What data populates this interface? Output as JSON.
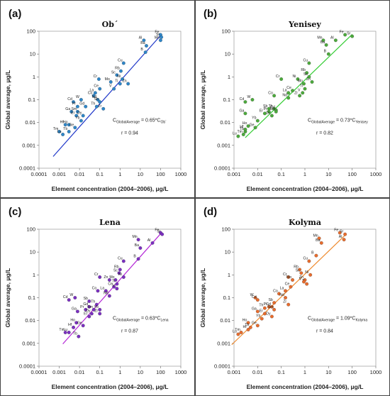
{
  "figure": {
    "x_axis_title": "Element concentration (2004–2006), μg/L",
    "y_axis_title": "Global average, μg/L",
    "x_ticks": [
      "0.0001",
      "0.001",
      "0.01",
      "0.1",
      "1",
      "10",
      "100",
      "1000"
    ],
    "y_ticks": [
      "0.0001",
      "0.001",
      "0.01",
      "0.1",
      "1",
      "10",
      "100"
    ]
  },
  "chart_data": [
    {
      "type": "scatter",
      "panel_letter": "(a)",
      "title": "Ob´",
      "xscale": "log",
      "yscale": "log",
      "xlim": [
        0.0001,
        1000
      ],
      "ylim": [
        0.0001,
        100
      ],
      "color": "#2e86c8",
      "line_color": "#1f37c9",
      "fit_coef": 0.65,
      "fit_x_range": [
        0.0005,
        100
      ],
      "equation": {
        "main": "C",
        "sub1": "GlobalAverage",
        "mid": " = 0.65*C",
        "sub2": "Ob´"
      },
      "r_label": "r = 0.94",
      "points": [
        {
          "label": "Fe",
          "x": 100,
          "y": 70
        },
        {
          "label": "Sr",
          "x": 110,
          "y": 55
        },
        {
          "label": "Mn",
          "x": 100,
          "y": 40
        },
        {
          "label": "Al",
          "x": 15,
          "y": 40
        },
        {
          "label": "Ba",
          "x": 20,
          "y": 23
        },
        {
          "label": "B",
          "x": 18,
          "y": 12
        },
        {
          "label": "Cu",
          "x": 1.5,
          "y": 4
        },
        {
          "label": "Rb",
          "x": 1.1,
          "y": 1.8
        },
        {
          "label": "Sc",
          "x": 0.7,
          "y": 1.2
        },
        {
          "label": "Ni",
          "x": 1.3,
          "y": 0.8
        },
        {
          "label": "Mo",
          "x": 0.35,
          "y": 0.6
        },
        {
          "label": "Zn",
          "x": 2.5,
          "y": 0.5
        },
        {
          "label": "Ti",
          "x": 1.0,
          "y": 0.5
        },
        {
          "label": "Cr",
          "x": 0.09,
          "y": 0.8
        },
        {
          "label": "Ce",
          "x": 0.1,
          "y": 0.3
        },
        {
          "label": "La",
          "x": 0.06,
          "y": 0.2
        },
        {
          "label": "Co",
          "x": 0.05,
          "y": 0.15
        },
        {
          "label": "Nd",
          "x": 0.08,
          "y": 0.1
        },
        {
          "label": "V",
          "x": 0.5,
          "y": 0.3
        },
        {
          "label": "Sb",
          "x": 0.1,
          "y": 0.08
        },
        {
          "label": "Zr",
          "x": 0.15,
          "y": 0.04
        },
        {
          "label": "Th",
          "x": 0.07,
          "y": 0.05
        },
        {
          "label": "Cd",
          "x": 0.005,
          "y": 0.08
        },
        {
          "label": "W",
          "x": 0.012,
          "y": 0.1
        },
        {
          "label": "Pr",
          "x": 0.008,
          "y": 0.05
        },
        {
          "label": "Gd",
          "x": 0.02,
          "y": 0.05
        },
        {
          "label": "Ga",
          "x": 0.004,
          "y": 0.03
        },
        {
          "label": "Sm",
          "x": 0.008,
          "y": 0.03
        },
        {
          "label": "Er",
          "x": 0.007,
          "y": 0.02
        },
        {
          "label": "Dy",
          "x": 0.015,
          "y": 0.02
        },
        {
          "label": "Hf",
          "x": 0.002,
          "y": 0.008
        },
        {
          "label": "Ho",
          "x": 0.003,
          "y": 0.008
        },
        {
          "label": "Ge",
          "x": 0.006,
          "y": 0.006
        },
        {
          "label": "Tm",
          "x": 0.001,
          "y": 0.004
        },
        {
          "label": "Lu",
          "x": 0.0015,
          "y": 0.003
        },
        {
          "label": "Tb",
          "x": 0.003,
          "y": 0.004
        },
        {
          "label": "Yb",
          "x": 0.012,
          "y": 0.012
        }
      ]
    },
    {
      "type": "scatter",
      "panel_letter": "(b)",
      "title": "Yenisey",
      "xscale": "log",
      "yscale": "log",
      "xlim": [
        0.001,
        1000
      ],
      "ylim": [
        0.0001,
        100
      ],
      "color": "#4caa3c",
      "line_color": "#33cc33",
      "fit_coef": 0.73,
      "fit_x_range": [
        0.003,
        100
      ],
      "equation": {
        "main": "C",
        "sub1": "GlobalAverage",
        "mid": " = 0.73*C",
        "sub2": "Yenisey"
      },
      "r_label": "r = 0.82",
      "points": [
        {
          "label": "Fe",
          "x": 50,
          "y": 70
        },
        {
          "label": "Sr",
          "x": 100,
          "y": 60
        },
        {
          "label": "Mn",
          "x": 6,
          "y": 40
        },
        {
          "label": "Al",
          "x": 20,
          "y": 40
        },
        {
          "label": "Ba",
          "x": 8,
          "y": 25
        },
        {
          "label": "B",
          "x": 10,
          "y": 10
        },
        {
          "label": "Cu",
          "x": 1.5,
          "y": 4
        },
        {
          "label": "Rb",
          "x": 1.2,
          "y": 1.5
        },
        {
          "label": "Sc",
          "x": 1.5,
          "y": 1.0
        },
        {
          "label": "Zn",
          "x": 2,
          "y": 0.6
        },
        {
          "label": "Ni",
          "x": 0.5,
          "y": 0.8
        },
        {
          "label": "Mo",
          "x": 0.9,
          "y": 0.5
        },
        {
          "label": "Ti",
          "x": 1.0,
          "y": 0.3
        },
        {
          "label": "Cr",
          "x": 0.1,
          "y": 0.8
        },
        {
          "label": "Ce",
          "x": 0.3,
          "y": 0.25
        },
        {
          "label": "La",
          "x": 0.2,
          "y": 0.2
        },
        {
          "label": "Nd",
          "x": 0.2,
          "y": 0.12
        },
        {
          "label": "Co",
          "x": 0.05,
          "y": 0.15
        },
        {
          "label": "Zr",
          "x": 0.6,
          "y": 0.15
        },
        {
          "label": "V",
          "x": 0.8,
          "y": 0.2
        },
        {
          "label": "Cd",
          "x": 0.003,
          "y": 0.08
        },
        {
          "label": "W",
          "x": 0.006,
          "y": 0.1
        },
        {
          "label": "Ga",
          "x": 0.003,
          "y": 0.025
        },
        {
          "label": "Sb",
          "x": 0.03,
          "y": 0.04
        },
        {
          "label": "Th",
          "x": 0.05,
          "y": 0.04
        },
        {
          "label": "Pr",
          "x": 0.03,
          "y": 0.03
        },
        {
          "label": "Gd",
          "x": 0.06,
          "y": 0.035
        },
        {
          "label": "Er",
          "x": 0.02,
          "y": 0.025
        },
        {
          "label": "Dy",
          "x": 0.04,
          "y": 0.02
        },
        {
          "label": "Sm",
          "x": 0.06,
          "y": 0.03
        },
        {
          "label": "Yb",
          "x": 0.01,
          "y": 0.012
        },
        {
          "label": "Ge",
          "x": 0.008,
          "y": 0.006
        },
        {
          "label": "Ho",
          "x": 0.004,
          "y": 0.007
        },
        {
          "label": "Tb",
          "x": 0.003,
          "y": 0.004
        },
        {
          "label": "Hf",
          "x": 0.003,
          "y": 0.005
        },
        {
          "label": "Tm",
          "x": 0.0025,
          "y": 0.003
        },
        {
          "label": "Lu",
          "x": 0.0015,
          "y": 0.0025
        }
      ]
    },
    {
      "type": "scatter",
      "panel_letter": "(c)",
      "title": "Lena",
      "xscale": "log",
      "yscale": "log",
      "xlim": [
        0.0001,
        1000
      ],
      "ylim": [
        0.0001,
        100
      ],
      "color": "#7a2fc0",
      "line_color": "#b325d6",
      "fit_coef": 0.63,
      "fit_x_range": [
        0.0015,
        100
      ],
      "equation": {
        "main": "C",
        "sub1": "GlobalAverage",
        "mid": " = 0.63*C",
        "sub2": "Lena"
      },
      "r_label": "r = 0.87",
      "points": [
        {
          "label": "Fe",
          "x": 100,
          "y": 70
        },
        {
          "label": "Sr",
          "x": 120,
          "y": 60
        },
        {
          "label": "Mn",
          "x": 8,
          "y": 35
        },
        {
          "label": "Al",
          "x": 40,
          "y": 25
        },
        {
          "label": "Ba",
          "x": 10,
          "y": 15
        },
        {
          "label": "B",
          "x": 8,
          "y": 5
        },
        {
          "label": "Cu",
          "x": 1.5,
          "y": 4
        },
        {
          "label": "Rb",
          "x": 1.0,
          "y": 1.7
        },
        {
          "label": "Sc",
          "x": 0.9,
          "y": 1.2
        },
        {
          "label": "Ni",
          "x": 1.5,
          "y": 0.8
        },
        {
          "label": "Mo",
          "x": 0.6,
          "y": 0.6
        },
        {
          "label": "Cr",
          "x": 0.1,
          "y": 0.8
        },
        {
          "label": "Zn",
          "x": 0.3,
          "y": 0.6
        },
        {
          "label": "Ti",
          "x": 0.7,
          "y": 0.4
        },
        {
          "label": "Ce",
          "x": 0.5,
          "y": 0.3
        },
        {
          "label": "La",
          "x": 0.2,
          "y": 0.2
        },
        {
          "label": "Co",
          "x": 0.08,
          "y": 0.2
        },
        {
          "label": "Nd",
          "x": 0.3,
          "y": 0.12
        },
        {
          "label": "V",
          "x": 0.7,
          "y": 0.25
        },
        {
          "label": "Cd",
          "x": 0.003,
          "y": 0.08
        },
        {
          "label": "W",
          "x": 0.006,
          "y": 0.1
        },
        {
          "label": "Sb",
          "x": 0.03,
          "y": 0.07
        },
        {
          "label": "Ga",
          "x": 0.008,
          "y": 0.025
        },
        {
          "label": "Pr",
          "x": 0.02,
          "y": 0.03
        },
        {
          "label": "Gd",
          "x": 0.03,
          "y": 0.04
        },
        {
          "label": "Sm",
          "x": 0.05,
          "y": 0.03
        },
        {
          "label": "Dy",
          "x": 0.04,
          "y": 0.02
        },
        {
          "label": "Er",
          "x": 0.03,
          "y": 0.015
        },
        {
          "label": "Th",
          "x": 0.07,
          "y": 0.05
        },
        {
          "label": "Yb",
          "x": 0.1,
          "y": 0.03
        },
        {
          "label": "Zr",
          "x": 0.1,
          "y": 0.02
        },
        {
          "label": "Ho",
          "x": 0.007,
          "y": 0.008
        },
        {
          "label": "Ge",
          "x": 0.015,
          "y": 0.006
        },
        {
          "label": "Hf",
          "x": 0.005,
          "y": 0.005
        },
        {
          "label": "Tm",
          "x": 0.002,
          "y": 0.003
        },
        {
          "label": "Lu",
          "x": 0.003,
          "y": 0.003
        },
        {
          "label": "Tb",
          "x": 0.009,
          "y": 0.002
        }
      ]
    },
    {
      "type": "scatter",
      "panel_letter": "(d)",
      "title": "Kolyma",
      "xscale": "log",
      "yscale": "log",
      "xlim": [
        0.001,
        1000
      ],
      "ylim": [
        0.0001,
        100
      ],
      "color": "#e86c2d",
      "line_color": "#ee8a2e",
      "fit_coef": 1.09,
      "fit_x_range": [
        0.0008,
        50
      ],
      "equation": {
        "main": "C",
        "sub1": "GlobalAverage",
        "mid": " = 1.09*C",
        "sub2": "Kolyma"
      },
      "r_label": "r = 0.84",
      "points": [
        {
          "label": "Fe",
          "x": 30,
          "y": 70
        },
        {
          "label": "Sr",
          "x": 50,
          "y": 60
        },
        {
          "label": "Al",
          "x": 45,
          "y": 35
        },
        {
          "label": "Mn",
          "x": 4,
          "y": 40
        },
        {
          "label": "Ba",
          "x": 5,
          "y": 25
        },
        {
          "label": "B",
          "x": 3,
          "y": 7
        },
        {
          "label": "Cu",
          "x": 1.5,
          "y": 4
        },
        {
          "label": "Rb",
          "x": 0.6,
          "y": 1.7
        },
        {
          "label": "Sc",
          "x": 0.7,
          "y": 1.2
        },
        {
          "label": "Ni",
          "x": 1.7,
          "y": 1.0
        },
        {
          "label": "Cr",
          "x": 0.2,
          "y": 0.8
        },
        {
          "label": "Zn",
          "x": 1.0,
          "y": 0.6
        },
        {
          "label": "Mo",
          "x": 0.3,
          "y": 0.6
        },
        {
          "label": "Ti",
          "x": 1.2,
          "y": 0.4
        },
        {
          "label": "V",
          "x": 0.9,
          "y": 0.5
        },
        {
          "label": "Ce",
          "x": 0.25,
          "y": 0.3
        },
        {
          "label": "La",
          "x": 0.15,
          "y": 0.2
        },
        {
          "label": "Co",
          "x": 0.08,
          "y": 0.15
        },
        {
          "label": "Nd",
          "x": 0.15,
          "y": 0.1
        },
        {
          "label": "Zr",
          "x": 0.2,
          "y": 0.05
        },
        {
          "label": "W",
          "x": 0.008,
          "y": 0.1
        },
        {
          "label": "Cd",
          "x": 0.01,
          "y": 0.08
        },
        {
          "label": "Sb",
          "x": 0.05,
          "y": 0.06
        },
        {
          "label": "Pr",
          "x": 0.03,
          "y": 0.04
        },
        {
          "label": "Gd",
          "x": 0.04,
          "y": 0.04
        },
        {
          "label": "Th",
          "x": 0.02,
          "y": 0.035
        },
        {
          "label": "Sm",
          "x": 0.05,
          "y": 0.03
        },
        {
          "label": "Ga",
          "x": 0.01,
          "y": 0.025
        },
        {
          "label": "Er",
          "x": 0.02,
          "y": 0.02
        },
        {
          "label": "Dy",
          "x": 0.04,
          "y": 0.015
        },
        {
          "label": "Yb",
          "x": 0.015,
          "y": 0.012
        },
        {
          "label": "Ho",
          "x": 0.004,
          "y": 0.008
        },
        {
          "label": "Ge",
          "x": 0.01,
          "y": 0.006
        },
        {
          "label": "Tb",
          "x": 0.005,
          "y": 0.005
        },
        {
          "label": "Hf",
          "x": 0.004,
          "y": 0.004
        },
        {
          "label": "Tm",
          "x": 0.002,
          "y": 0.003
        },
        {
          "label": "Lu",
          "x": 0.0015,
          "y": 0.0025
        }
      ]
    }
  ]
}
